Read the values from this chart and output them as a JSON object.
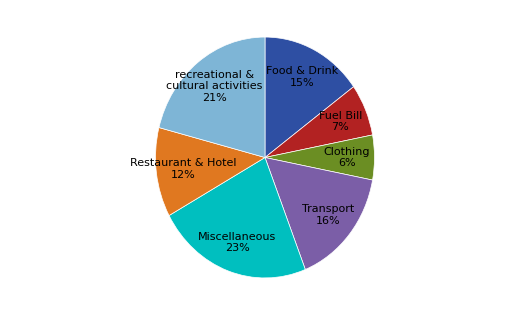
{
  "labels": [
    "Food & Drink\n15%",
    "Fuel Bill\n7%",
    "Clothing\n6%",
    "Transport\n16%",
    "Miscellaneous\n23%",
    "Restaurant & Hotel\n12%",
    "recreational &\ncultural activities\n21%"
  ],
  "sizes": [
    15,
    7,
    6,
    16,
    23,
    12,
    21
  ],
  "colors": [
    "#2E4FA3",
    "#B22222",
    "#6B8E23",
    "#7B5EA7",
    "#00BFBF",
    "#E07820",
    "#7EB5D6"
  ],
  "startangle": 90,
  "background_color": "#FFFFFF"
}
